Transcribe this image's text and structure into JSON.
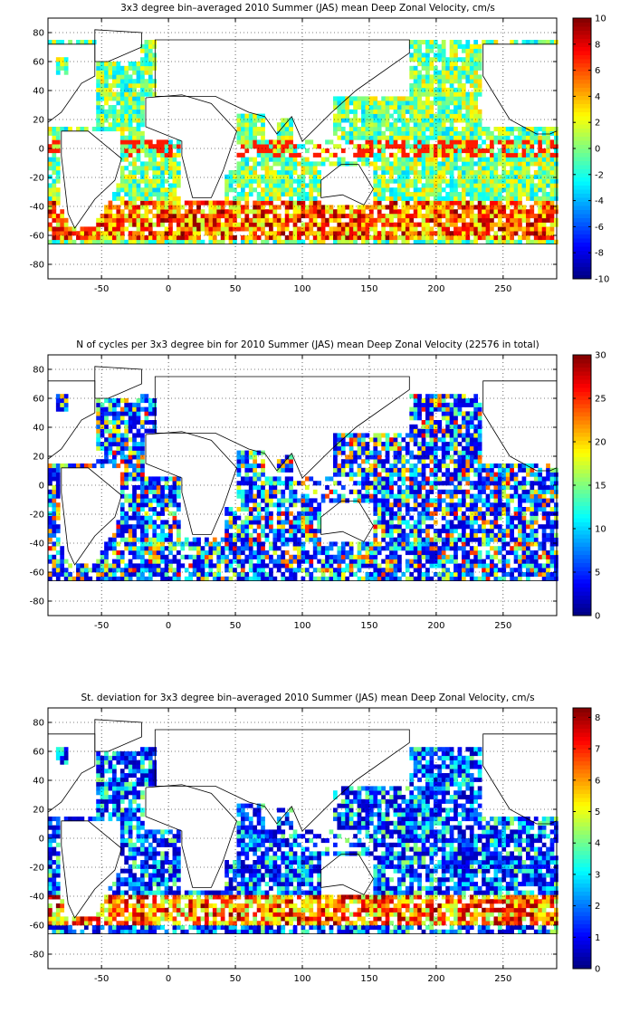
{
  "chart_data": [
    {
      "type": "heatmap",
      "title": "3x3 degree bin–averaged 2010 Summer (JAS) mean Deep Zonal Velocity, cm/s",
      "xlabel": "",
      "ylabel": "",
      "xlim": [
        -90,
        290
      ],
      "ylim": [
        -90,
        90
      ],
      "xticks": [
        "-50",
        "0",
        "50",
        "100",
        "150",
        "200",
        "250"
      ],
      "yticks": [
        "-80",
        "-60",
        "-40",
        "-20",
        "0",
        "20",
        "40",
        "60",
        "80"
      ],
      "grid": true,
      "bin_size_deg": 3,
      "colormap": "jet",
      "colorbar": {
        "range": [
          -10,
          10
        ],
        "ticks": [
          "10",
          "8",
          "6",
          "4",
          "2",
          "0",
          "-2",
          "-4",
          "-6",
          "-8",
          "-10"
        ]
      }
    },
    {
      "type": "heatmap",
      "title": "N of cycles per 3x3 degree bin for 2010 Summer (JAS) mean Deep Zonal Velocity (22576 in total)",
      "xlabel": "",
      "ylabel": "",
      "xlim": [
        -90,
        290
      ],
      "ylim": [
        -90,
        90
      ],
      "xticks": [
        "-50",
        "0",
        "50",
        "100",
        "150",
        "200",
        "250"
      ],
      "yticks": [
        "-80",
        "-60",
        "-40",
        "-20",
        "0",
        "20",
        "40",
        "60",
        "80"
      ],
      "grid": true,
      "bin_size_deg": 3,
      "colormap": "jet",
      "colorbar": {
        "range": [
          0,
          30
        ],
        "ticks": [
          "30",
          "25",
          "20",
          "15",
          "10",
          "5",
          "0"
        ]
      }
    },
    {
      "type": "heatmap",
      "title": "St. deviation for 3x3 degree bin–averaged 2010 Summer (JAS) mean Deep Zonal Velocity, cm/s",
      "xlabel": "",
      "ylabel": "",
      "xlim": [
        -90,
        290
      ],
      "ylim": [
        -90,
        90
      ],
      "xticks": [
        "-50",
        "0",
        "50",
        "100",
        "150",
        "200",
        "250"
      ],
      "yticks": [
        "-80",
        "-60",
        "-40",
        "-20",
        "0",
        "20",
        "40",
        "60",
        "80"
      ],
      "grid": true,
      "bin_size_deg": 3,
      "colormap": "jet",
      "colorbar": {
        "range": [
          0,
          8.3
        ],
        "ticks": [
          "8",
          "7",
          "6",
          "5",
          "4",
          "3",
          "2",
          "1",
          "0"
        ]
      }
    }
  ]
}
